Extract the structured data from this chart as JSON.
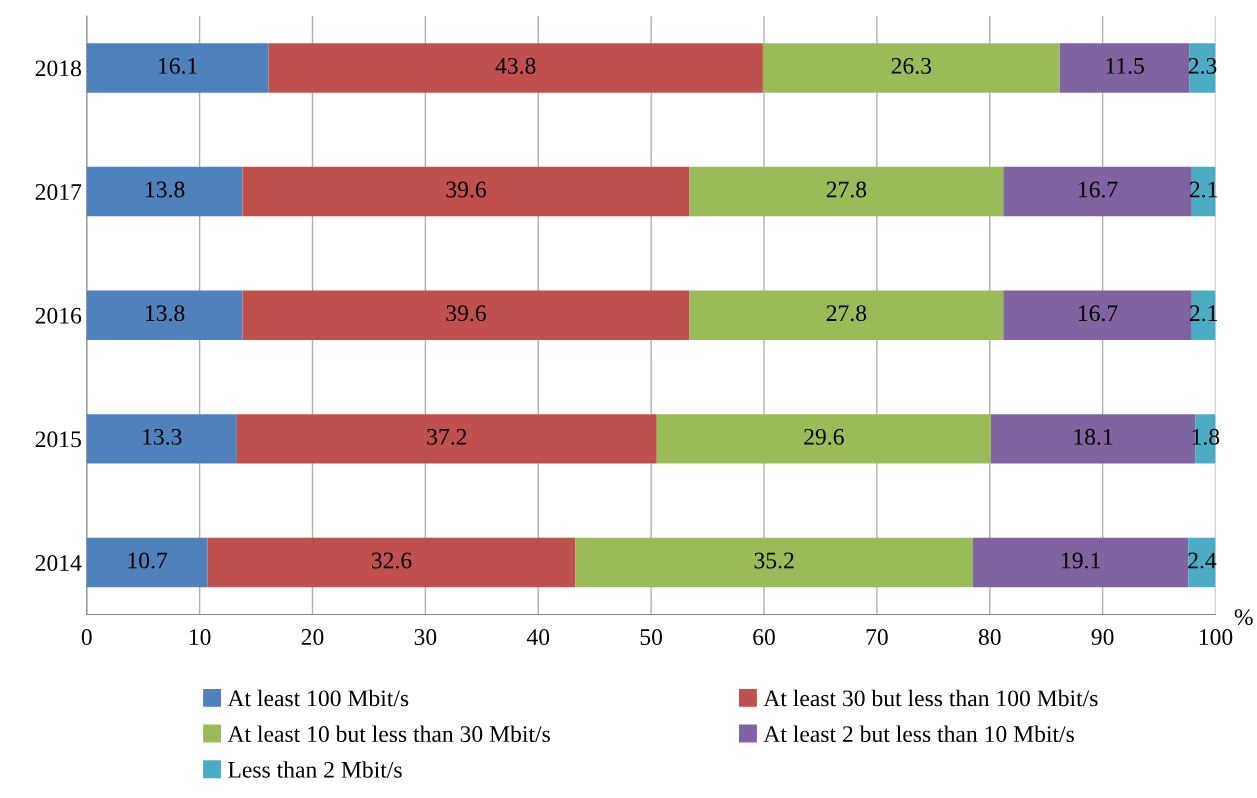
{
  "chart_data": {
    "type": "bar",
    "orientation": "horizontal",
    "stacked": true,
    "xlabel": "%",
    "categories": [
      "2018",
      "2017",
      "2016",
      "2015",
      "2014"
    ],
    "series": [
      {
        "name": "At least 100 Mbit/s",
        "color": "#4f81bd",
        "values": [
          16.1,
          13.8,
          13.8,
          13.3,
          10.7
        ]
      },
      {
        "name": "At least 30 but less than 100 Mbit/s",
        "color": "#c0504d",
        "values": [
          43.8,
          39.6,
          39.6,
          37.2,
          32.6
        ]
      },
      {
        "name": "At least 10 but less than 30 Mbit/s",
        "color": "#9bbb59",
        "values": [
          26.3,
          27.8,
          27.8,
          29.6,
          35.2
        ]
      },
      {
        "name": "At least 2 but less than 10 Mbit/s",
        "color": "#8064a2",
        "values": [
          11.5,
          16.7,
          16.7,
          18.1,
          19.1
        ]
      },
      {
        "name": "Less than 2 Mbit/s",
        "color": "#4bacc6",
        "values": [
          2.3,
          2.1,
          2.1,
          1.8,
          2.4
        ]
      }
    ],
    "xlim": [
      0,
      100
    ],
    "xticks": [
      0,
      10,
      20,
      30,
      40,
      50,
      60,
      70,
      80,
      90,
      100
    ],
    "grid": "x",
    "legend": "bottom",
    "data_labels": true
  }
}
